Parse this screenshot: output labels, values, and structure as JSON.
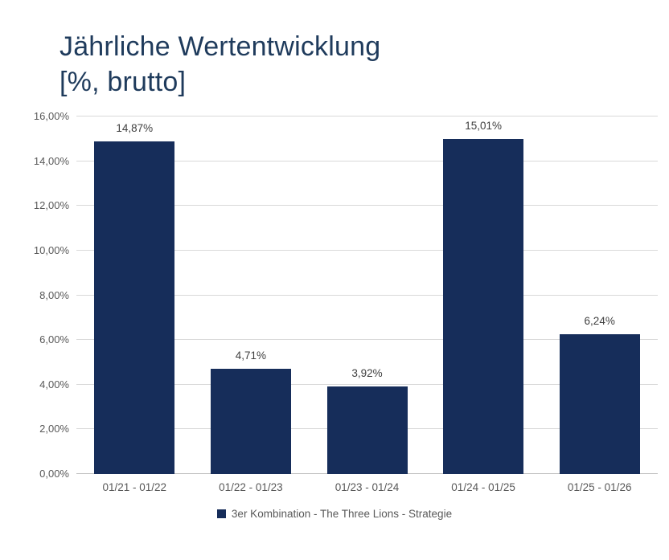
{
  "page": {
    "background": "#ffffff"
  },
  "title": {
    "line1": "Jährliche Wertentwicklung",
    "line2": "[%, brutto]",
    "color": "#1f3b5c"
  },
  "chart_data": {
    "type": "bar",
    "title": "Jährliche Wertentwicklung [%, brutto]",
    "categories": [
      "01/21 - 01/22",
      "01/22 - 01/23",
      "01/23 - 01/24",
      "01/24 - 01/25",
      "01/25 - 01/26"
    ],
    "values": [
      14.87,
      4.71,
      3.92,
      15.01,
      6.24
    ],
    "value_labels": [
      "14,87%",
      "4,71%",
      "3,92%",
      "15,01%",
      "6,24%"
    ],
    "series": [
      {
        "name": "3er Kombination - The Three Lions - Strategie",
        "values": [
          14.87,
          4.71,
          3.92,
          15.01,
          6.24
        ]
      }
    ],
    "xlabel": "",
    "ylabel": "",
    "ylim": [
      0,
      16
    ],
    "ytick_step": 2,
    "ytick_labels": [
      "0,00%",
      "2,00%",
      "4,00%",
      "6,00%",
      "8,00%",
      "10,00%",
      "12,00%",
      "14,00%",
      "16,00%"
    ],
    "grid": true,
    "legend_position": "bottom",
    "colors": {
      "bar": "#162d5a",
      "gridline": "#d9d9d9",
      "axis_line": "#bfbfbf",
      "axis_labels": "#595959",
      "data_labels": "#3f3f3f",
      "title": "#1f3b5c"
    }
  },
  "legend": {
    "label": "3er Kombination - The Three Lions - Strategie",
    "marker_color": "#162d5a"
  }
}
